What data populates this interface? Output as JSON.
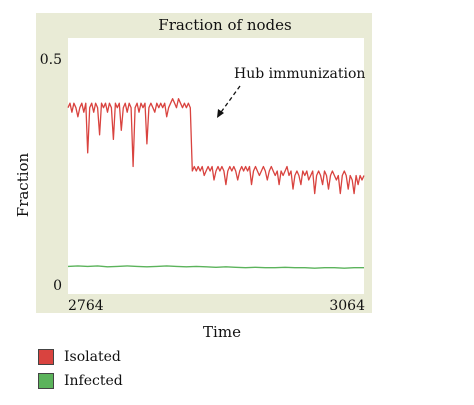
{
  "colors": {
    "panel_bg": "#e9ebd6",
    "plot_bg": "#ffffff",
    "isolated": "#d9433f",
    "infected": "#5bb35b"
  },
  "chart_data": {
    "type": "line",
    "title": "Fraction of nodes",
    "xlabel": "Time",
    "ylabel": "Fraction",
    "xlim": [
      2764,
      3064
    ],
    "ylim": [
      0,
      0.5
    ],
    "xticks": [
      "2764",
      "3064"
    ],
    "yticks": [
      "0",
      "0.5"
    ],
    "grid": false,
    "annotation": {
      "text": "Hub immunization",
      "x": 2848,
      "y": 0.37
    },
    "legend_position": "bottom-left",
    "series": [
      {
        "name": "Isolated",
        "color": "#d9433f",
        "x": [
          2764,
          2766,
          2768,
          2770,
          2772,
          2774,
          2776,
          2778,
          2780,
          2782,
          2784,
          2786,
          2788,
          2790,
          2792,
          2794,
          2796,
          2798,
          2800,
          2802,
          2804,
          2806,
          2808,
          2810,
          2812,
          2814,
          2816,
          2818,
          2820,
          2822,
          2824,
          2826,
          2828,
          2830,
          2832,
          2834,
          2836,
          2838,
          2840,
          2842,
          2844,
          2846,
          2848,
          2850,
          2852,
          2854,
          2856,
          2858,
          2860,
          2862,
          2864,
          2866,
          2868,
          2870,
          2872,
          2874,
          2876,
          2878,
          2880,
          2882,
          2884,
          2886,
          2888,
          2890,
          2892,
          2894,
          2896,
          2898,
          2900,
          2902,
          2904,
          2906,
          2908,
          2910,
          2912,
          2914,
          2916,
          2918,
          2920,
          2922,
          2924,
          2926,
          2928,
          2930,
          2932,
          2934,
          2936,
          2938,
          2940,
          2942,
          2944,
          2946,
          2948,
          2950,
          2952,
          2954,
          2956,
          2958,
          2960,
          2962,
          2964,
          2966,
          2968,
          2970,
          2972,
          2974,
          2976,
          2978,
          2980,
          2982,
          2984,
          2986,
          2988,
          2990,
          2992,
          2994,
          2996,
          2998,
          3000,
          3002,
          3004,
          3006,
          3008,
          3010,
          3012,
          3014,
          3016,
          3018,
          3020,
          3022,
          3024,
          3026,
          3028,
          3030,
          3032,
          3034,
          3036,
          3038,
          3040,
          3042,
          3044,
          3046,
          3048,
          3050,
          3052,
          3054,
          3056,
          3058,
          3060,
          3062,
          3064
        ],
        "y": [
          0.39,
          0.4,
          0.38,
          0.4,
          0.39,
          0.37,
          0.39,
          0.4,
          0.38,
          0.4,
          0.29,
          0.39,
          0.4,
          0.38,
          0.4,
          0.39,
          0.33,
          0.4,
          0.39,
          0.4,
          0.38,
          0.4,
          0.39,
          0.32,
          0.4,
          0.39,
          0.4,
          0.34,
          0.39,
          0.4,
          0.38,
          0.4,
          0.39,
          0.26,
          0.39,
          0.4,
          0.38,
          0.4,
          0.39,
          0.4,
          0.31,
          0.39,
          0.4,
          0.39,
          0.38,
          0.4,
          0.39,
          0.4,
          0.39,
          0.4,
          0.37,
          0.39,
          0.4,
          0.41,
          0.4,
          0.39,
          0.41,
          0.4,
          0.39,
          0.4,
          0.39,
          0.4,
          0.39,
          0.25,
          0.26,
          0.25,
          0.26,
          0.25,
          0.26,
          0.24,
          0.25,
          0.26,
          0.25,
          0.26,
          0.23,
          0.25,
          0.26,
          0.25,
          0.26,
          0.25,
          0.22,
          0.25,
          0.26,
          0.25,
          0.26,
          0.25,
          0.23,
          0.25,
          0.26,
          0.25,
          0.26,
          0.25,
          0.26,
          0.22,
          0.25,
          0.26,
          0.25,
          0.24,
          0.25,
          0.26,
          0.25,
          0.23,
          0.25,
          0.26,
          0.25,
          0.24,
          0.25,
          0.22,
          0.25,
          0.24,
          0.25,
          0.26,
          0.24,
          0.25,
          0.21,
          0.24,
          0.25,
          0.24,
          0.22,
          0.25,
          0.24,
          0.25,
          0.23,
          0.24,
          0.25,
          0.2,
          0.24,
          0.25,
          0.24,
          0.22,
          0.25,
          0.24,
          0.21,
          0.24,
          0.25,
          0.24,
          0.23,
          0.24,
          0.2,
          0.24,
          0.25,
          0.24,
          0.21,
          0.24,
          0.23,
          0.2,
          0.24,
          0.22,
          0.24,
          0.23,
          0.24
        ]
      },
      {
        "name": "Infected",
        "color": "#5bb35b",
        "x": [
          2764,
          2774,
          2784,
          2794,
          2804,
          2814,
          2824,
          2834,
          2844,
          2854,
          2864,
          2874,
          2884,
          2894,
          2904,
          2914,
          2924,
          2934,
          2944,
          2954,
          2964,
          2974,
          2984,
          2994,
          3004,
          3014,
          3024,
          3034,
          3044,
          3054,
          3064
        ],
        "y": [
          0.039,
          0.04,
          0.039,
          0.04,
          0.038,
          0.039,
          0.04,
          0.039,
          0.038,
          0.039,
          0.04,
          0.039,
          0.038,
          0.039,
          0.038,
          0.037,
          0.038,
          0.037,
          0.036,
          0.037,
          0.036,
          0.036,
          0.037,
          0.036,
          0.036,
          0.035,
          0.036,
          0.036,
          0.035,
          0.036,
          0.036
        ]
      }
    ]
  }
}
